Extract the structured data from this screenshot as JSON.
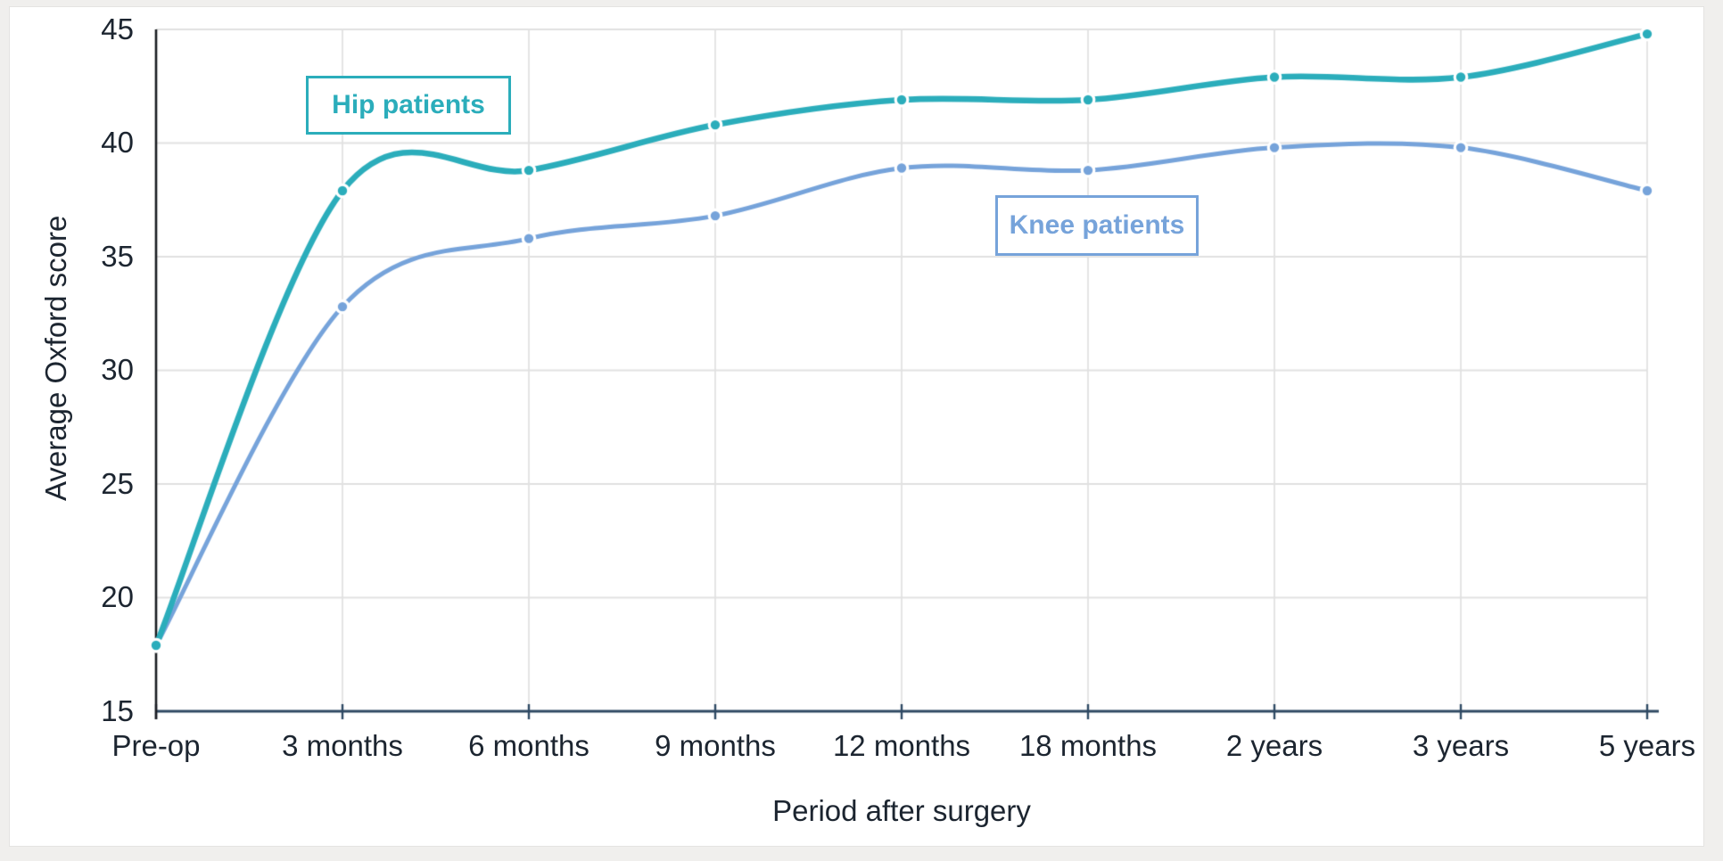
{
  "page": {
    "background": "#f0efed"
  },
  "card": {
    "background": "#ffffff",
    "border_color": "#e4e3e1"
  },
  "colors": {
    "grid": "#e1e1e1",
    "x_axis_line": "#2e4963",
    "y_axis_line": "#191c21",
    "tick_mark": "#2e4963",
    "text": "#1c2530",
    "hip_accent": "#2badbb",
    "knee_accent": "#76a3da"
  },
  "chart_data": {
    "type": "line",
    "title": "",
    "xlabel": "Period after surgery",
    "ylabel": "Average Oxford score",
    "categories": [
      "Pre-op",
      "3 months",
      "6 months",
      "9 months",
      "12 months",
      "18 months",
      "2 years",
      "3 years",
      "5 years"
    ],
    "yticks": [
      15,
      20,
      25,
      30,
      35,
      40,
      45
    ],
    "ylim": [
      15,
      45
    ],
    "grid": true,
    "line_style": "smooth",
    "legend_position": "boxed labels inside plot area",
    "series": [
      {
        "name": "Hip patients",
        "color": "#2badbb",
        "line_width": 6.6,
        "marker": "circle-with-white-ring",
        "values": [
          17.9,
          37.9,
          38.8,
          40.8,
          41.9,
          41.9,
          42.9,
          42.9,
          44.8
        ]
      },
      {
        "name": "Knee patients",
        "color": "#76a3da",
        "line_width": 5,
        "marker": "circle-with-white-ring",
        "values": [
          17.9,
          32.8,
          35.8,
          36.8,
          38.9,
          38.8,
          39.8,
          39.8,
          37.9
        ]
      }
    ]
  }
}
